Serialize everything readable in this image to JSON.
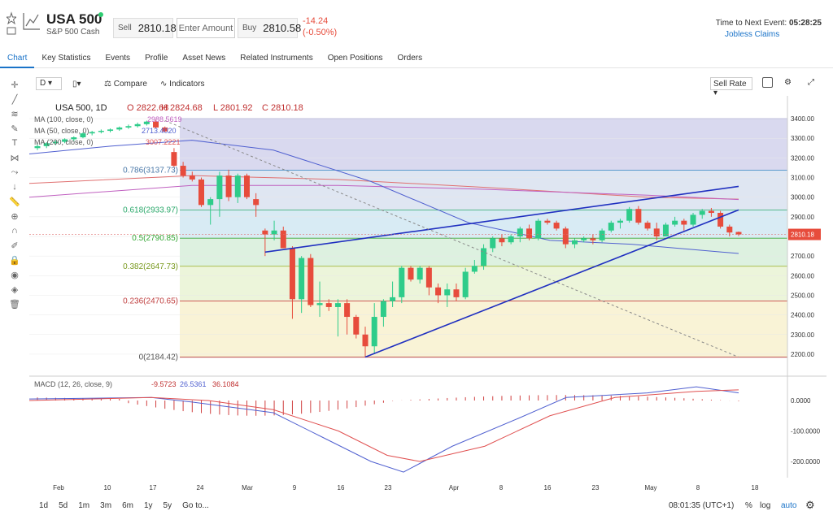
{
  "instrument": {
    "symbol": "USA 500",
    "subtitle": "S&P 500 Cash",
    "sell_label": "Sell",
    "sell_price": "2810.18",
    "amount_placeholder": "Enter Amount",
    "buy_label": "Buy",
    "buy_price": "2810.58",
    "change": "-14.24",
    "change_pct": "(-0.50%)"
  },
  "event": {
    "label": "Time to Next Event:",
    "countdown": "05:28:25",
    "name": "Jobless Claims"
  },
  "tabs": [
    {
      "label": "Chart"
    },
    {
      "label": "Key Statistics"
    },
    {
      "label": "Events"
    },
    {
      "label": "Profile"
    },
    {
      "label": "Asset News"
    },
    {
      "label": "Related Instruments"
    },
    {
      "label": "Open Positions"
    },
    {
      "label": "Orders"
    }
  ],
  "toolbar": {
    "interval": "D",
    "compare": "Compare",
    "indicators": "Indicators",
    "price_mode": "Sell Rate"
  },
  "legend": {
    "title": "USA 500, 1D",
    "o": "O 2822.68",
    "h": "H 2824.68",
    "l": "L 2801.92",
    "c": "C 2810.18",
    "ma100": "MA (100, close, 0)",
    "ma100_val": "2988.5619",
    "ma50": "MA (50, close, 0)",
    "ma50_val": "2713.4020",
    "ma200": "MA (200, close, 0)",
    "ma200_val": "3007.2221",
    "macd": "MACD (12, 26, close, 9)",
    "macd_v1": "-9.5723",
    "macd_v2": "26.5361",
    "macd_v3": "36.1084"
  },
  "fib_labels": [
    "0.786(3137.73)",
    "0.618(2933.97)",
    "0.5(2790.85)",
    "0.382(2647.73)",
    "0.236(2470.65)",
    "0(2184.42)"
  ],
  "price_axis": [
    "3400.00",
    "3300.00",
    "3200.00",
    "3100.00",
    "3000.00",
    "2900.00",
    "2800.00",
    "2700.00",
    "2600.00",
    "2500.00",
    "2400.00",
    "2300.00",
    "2200.00"
  ],
  "last_price_tag": "2810.18",
  "macd_axis": [
    "0.0000",
    "-100.0000",
    "-200.0000"
  ],
  "time_axis": [
    "Feb",
    "10",
    "17",
    "24",
    "Mar",
    "9",
    "16",
    "23",
    "Apr",
    "8",
    "16",
    "23",
    "May",
    "8",
    "18"
  ],
  "bottom": {
    "ranges": [
      "1d",
      "5d",
      "1m",
      "3m",
      "6m",
      "1y",
      "5y",
      "Go to..."
    ],
    "clock": "08:01:35 (UTC+1)",
    "pct": "%",
    "log": "log",
    "auto": "auto"
  },
  "chart_data": {
    "type": "candlestick",
    "y_range": [
      2150,
      3450
    ],
    "candles": [
      {
        "o": 3250,
        "h": 3270,
        "l": 3240,
        "c": 3260
      },
      {
        "o": 3260,
        "h": 3280,
        "l": 3250,
        "c": 3275
      },
      {
        "o": 3275,
        "h": 3290,
        "l": 3265,
        "c": 3282
      },
      {
        "o": 3282,
        "h": 3300,
        "l": 3275,
        "c": 3295
      },
      {
        "o": 3295,
        "h": 3310,
        "l": 3285,
        "c": 3305
      },
      {
        "o": 3305,
        "h": 3330,
        "l": 3300,
        "c": 3325
      },
      {
        "o": 3325,
        "h": 3338,
        "l": 3315,
        "c": 3332
      },
      {
        "o": 3332,
        "h": 3345,
        "l": 3325,
        "c": 3338
      },
      {
        "o": 3338,
        "h": 3350,
        "l": 3330,
        "c": 3345
      },
      {
        "o": 3345,
        "h": 3360,
        "l": 3338,
        "c": 3355
      },
      {
        "o": 3355,
        "h": 3370,
        "l": 3348,
        "c": 3362
      },
      {
        "o": 3362,
        "h": 3380,
        "l": 3355,
        "c": 3372
      },
      {
        "o": 3372,
        "h": 3390,
        "l": 3365,
        "c": 3385
      },
      {
        "o": 3385,
        "h": 3395,
        "l": 3350,
        "c": 3355
      },
      {
        "o": 3355,
        "h": 3360,
        "l": 3330,
        "c": 3335
      },
      {
        "o": 3230,
        "h": 3250,
        "l": 3150,
        "c": 3160
      },
      {
        "o": 3160,
        "h": 3180,
        "l": 3100,
        "c": 3110
      },
      {
        "o": 3110,
        "h": 3130,
        "l": 3080,
        "c": 3090
      },
      {
        "o": 3090,
        "h": 3100,
        "l": 2950,
        "c": 2960
      },
      {
        "o": 2960,
        "h": 3000,
        "l": 2860,
        "c": 2990
      },
      {
        "o": 2990,
        "h": 3130,
        "l": 2900,
        "c": 3110
      },
      {
        "o": 3110,
        "h": 3140,
        "l": 2980,
        "c": 3000
      },
      {
        "o": 3000,
        "h": 3120,
        "l": 2970,
        "c": 3110
      },
      {
        "o": 3110,
        "h": 3120,
        "l": 2990,
        "c": 3000
      },
      {
        "o": 2990,
        "h": 3020,
        "l": 2900,
        "c": 2960
      },
      {
        "o": 2830,
        "h": 2840,
        "l": 2700,
        "c": 2810
      },
      {
        "o": 2810,
        "h": 2880,
        "l": 2780,
        "c": 2830
      },
      {
        "o": 2830,
        "h": 2850,
        "l": 2740,
        "c": 2740
      },
      {
        "o": 2740,
        "h": 2750,
        "l": 2380,
        "c": 2480
      },
      {
        "o": 2480,
        "h": 2700,
        "l": 2410,
        "c": 2690
      },
      {
        "o": 2690,
        "h": 2710,
        "l": 2440,
        "c": 2450
      },
      {
        "o": 2450,
        "h": 2570,
        "l": 2390,
        "c": 2460
      },
      {
        "o": 2460,
        "h": 2480,
        "l": 2420,
        "c": 2440
      },
      {
        "o": 2440,
        "h": 2480,
        "l": 2290,
        "c": 2460
      },
      {
        "o": 2460,
        "h": 2480,
        "l": 2300,
        "c": 2390
      },
      {
        "o": 2390,
        "h": 2400,
        "l": 2280,
        "c": 2300
      },
      {
        "o": 2300,
        "h": 2340,
        "l": 2185,
        "c": 2240
      },
      {
        "o": 2240,
        "h": 2460,
        "l": 2200,
        "c": 2390
      },
      {
        "o": 2390,
        "h": 2480,
        "l": 2340,
        "c": 2470
      },
      {
        "o": 2470,
        "h": 2570,
        "l": 2440,
        "c": 2490
      },
      {
        "o": 2490,
        "h": 2650,
        "l": 2460,
        "c": 2640
      },
      {
        "o": 2640,
        "h": 2650,
        "l": 2570,
        "c": 2580
      },
      {
        "o": 2580,
        "h": 2650,
        "l": 2560,
        "c": 2640
      },
      {
        "o": 2640,
        "h": 2650,
        "l": 2500,
        "c": 2540
      },
      {
        "o": 2540,
        "h": 2560,
        "l": 2460,
        "c": 2500
      },
      {
        "o": 2500,
        "h": 2560,
        "l": 2440,
        "c": 2530
      },
      {
        "o": 2530,
        "h": 2560,
        "l": 2470,
        "c": 2490
      },
      {
        "o": 2490,
        "h": 2640,
        "l": 2480,
        "c": 2620
      },
      {
        "o": 2620,
        "h": 2680,
        "l": 2610,
        "c": 2650
      },
      {
        "o": 2650,
        "h": 2760,
        "l": 2630,
        "c": 2740
      },
      {
        "o": 2740,
        "h": 2800,
        "l": 2720,
        "c": 2790
      },
      {
        "o": 2790,
        "h": 2810,
        "l": 2750,
        "c": 2770
      },
      {
        "o": 2770,
        "h": 2810,
        "l": 2760,
        "c": 2800
      },
      {
        "o": 2800,
        "h": 2850,
        "l": 2770,
        "c": 2840
      },
      {
        "o": 2840,
        "h": 2860,
        "l": 2780,
        "c": 2790
      },
      {
        "o": 2790,
        "h": 2890,
        "l": 2780,
        "c": 2880
      },
      {
        "o": 2880,
        "h": 2890,
        "l": 2860,
        "c": 2870
      },
      {
        "o": 2870,
        "h": 2880,
        "l": 2830,
        "c": 2840
      },
      {
        "o": 2840,
        "h": 2850,
        "l": 2740,
        "c": 2760
      },
      {
        "o": 2760,
        "h": 2790,
        "l": 2740,
        "c": 2780
      },
      {
        "o": 2780,
        "h": 2800,
        "l": 2770,
        "c": 2790
      },
      {
        "o": 2790,
        "h": 2810,
        "l": 2760,
        "c": 2780
      },
      {
        "o": 2780,
        "h": 2840,
        "l": 2770,
        "c": 2830
      },
      {
        "o": 2830,
        "h": 2880,
        "l": 2820,
        "c": 2870
      },
      {
        "o": 2870,
        "h": 2890,
        "l": 2840,
        "c": 2880
      },
      {
        "o": 2880,
        "h": 2950,
        "l": 2870,
        "c": 2940
      },
      {
        "o": 2940,
        "h": 2955,
        "l": 2860,
        "c": 2870
      },
      {
        "o": 2870,
        "h": 2880,
        "l": 2830,
        "c": 2840
      },
      {
        "o": 2840,
        "h": 2870,
        "l": 2780,
        "c": 2800
      },
      {
        "o": 2800,
        "h": 2870,
        "l": 2800,
        "c": 2860
      },
      {
        "o": 2860,
        "h": 2900,
        "l": 2850,
        "c": 2880
      },
      {
        "o": 2880,
        "h": 2890,
        "l": 2830,
        "c": 2860
      },
      {
        "o": 2860,
        "h": 2920,
        "l": 2850,
        "c": 2910
      },
      {
        "o": 2910,
        "h": 2940,
        "l": 2890,
        "c": 2930
      },
      {
        "o": 2930,
        "h": 2945,
        "l": 2900,
        "c": 2920
      },
      {
        "o": 2920,
        "h": 2930,
        "l": 2840,
        "c": 2850
      },
      {
        "o": 2850,
        "h": 2860,
        "l": 2800,
        "c": 2820
      },
      {
        "o": 2822.68,
        "h": 2824.68,
        "l": 2801.92,
        "c": 2810.18
      }
    ]
  }
}
